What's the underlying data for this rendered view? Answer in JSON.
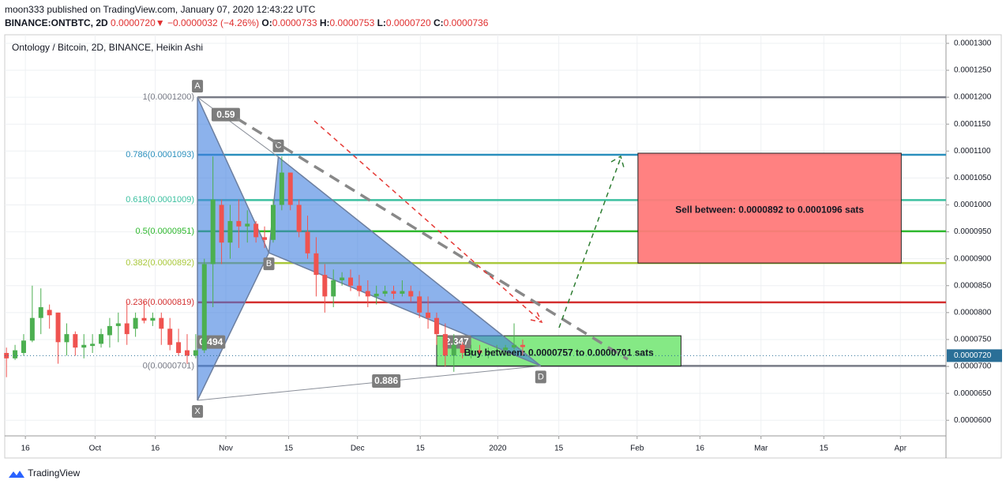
{
  "header": {
    "publisher": "moon333 published on TradingView.com, January 07, 2020 12:43:22 UTC",
    "symbol": "BINANCE:ONTBTC, 2D",
    "last": "0.0000720",
    "arrow": "▼",
    "change": "−0.0000032 (−4.26%)",
    "o_label": "O:",
    "o": "0.0000733",
    "h_label": "H:",
    "h": "0.0000753",
    "l_label": "L:",
    "l": "0.0000720",
    "c_label": "C:",
    "c": "0.0000736"
  },
  "footer": {
    "brand": "TradingView"
  },
  "chart_data": {
    "type": "candlestick",
    "title": "Ontology / Bitcoin, 2D, BINANCE, Heikin Ashi",
    "up_color": "#4caf50",
    "down_color": "#ef5350",
    "grid": true,
    "candles": [
      {
        "o": 7.25e-05,
        "h": 7.35e-05,
        "l": 6.8e-05,
        "c": 7.15e-05
      },
      {
        "o": 7.15e-05,
        "h": 7.4e-05,
        "l": 7.12e-05,
        "c": 7.3e-05
      },
      {
        "o": 7.25e-05,
        "h": 7.6e-05,
        "l": 7.2e-05,
        "c": 7.48e-05
      },
      {
        "o": 7.48e-05,
        "h": 8.5e-05,
        "l": 7.45e-05,
        "c": 7.9e-05
      },
      {
        "o": 7.9e-05,
        "h": 8.45e-05,
        "l": 7.6e-05,
        "c": 8.1e-05
      },
      {
        "o": 8.05e-05,
        "h": 8.15e-05,
        "l": 7.7e-05,
        "c": 7.95e-05
      },
      {
        "o": 8e-05,
        "h": 8e-05,
        "l": 7.05e-05,
        "c": 7.45e-05
      },
      {
        "o": 7.45e-05,
        "h": 7.8e-05,
        "l": 7.2e-05,
        "c": 7.6e-05
      },
      {
        "o": 7.6e-05,
        "h": 7.65e-05,
        "l": 7.2e-05,
        "c": 7.35e-05
      },
      {
        "o": 7.35e-05,
        "h": 7.6e-05,
        "l": 7.15e-05,
        "c": 7.4e-05
      },
      {
        "o": 7.38e-05,
        "h": 7.6e-05,
        "l": 7.25e-05,
        "c": 7.42e-05
      },
      {
        "o": 7.42e-05,
        "h": 7.7e-05,
        "l": 7.35e-05,
        "c": 7.6e-05
      },
      {
        "o": 7.58e-05,
        "h": 7.9e-05,
        "l": 7.35e-05,
        "c": 7.75e-05
      },
      {
        "o": 7.75e-05,
        "h": 8e-05,
        "l": 7.45e-05,
        "c": 7.8e-05
      },
      {
        "o": 7.8e-05,
        "h": 8.2e-05,
        "l": 7.4e-05,
        "c": 7.6e-05
      },
      {
        "o": 7.7e-05,
        "h": 8e-05,
        "l": 7.55e-05,
        "c": 7.9e-05
      },
      {
        "o": 7.9e-05,
        "h": 8.2e-05,
        "l": 7.8e-05,
        "c": 7.85e-05
      },
      {
        "o": 7.85e-05,
        "h": 8e-05,
        "l": 7.75e-05,
        "c": 7.9e-05
      },
      {
        "o": 7.9e-05,
        "h": 8e-05,
        "l": 7.4e-05,
        "c": 7.7e-05
      },
      {
        "o": 7.7e-05,
        "h": 7.9e-05,
        "l": 7.3e-05,
        "c": 7.4e-05
      },
      {
        "o": 7.45e-05,
        "h": 7.7e-05,
        "l": 7.2e-05,
        "c": 7.25e-05
      },
      {
        "o": 7.3e-05,
        "h": 7.6e-05,
        "l": 7.05e-05,
        "c": 7.2e-05
      },
      {
        "o": 7.2e-05,
        "h": 7.6e-05,
        "l": 7.15e-05,
        "c": 7.3e-05
      },
      {
        "o": 7.3e-05,
        "h": 9e-05,
        "l": 7.25e-05,
        "c": 8.9e-05
      },
      {
        "o": 8.9e-05,
        "h": 0.000109,
        "l": 8.1e-05,
        "c": 0.000101
      },
      {
        "o": 0.0001,
        "h": 0.000101,
        "l": 8.9e-05,
        "c": 9.3e-05
      },
      {
        "o": 9.3e-05,
        "h": 0.0001,
        "l": 9e-05,
        "c": 9.7e-05
      },
      {
        "o": 9.7e-05,
        "h": 0.000101,
        "l": 9.2e-05,
        "c": 9.6e-05
      },
      {
        "o": 9.6e-05,
        "h": 9.9e-05,
        "l": 9.3e-05,
        "c": 9.65e-05
      },
      {
        "o": 9.65e-05,
        "h": 9.7e-05,
        "l": 9.3e-05,
        "c": 9.4e-05
      },
      {
        "o": 9.4e-05,
        "h": 9.6e-05,
        "l": 9.2e-05,
        "c": 9.35e-05
      },
      {
        "o": 9.35e-05,
        "h": 0.000101,
        "l": 9.3e-05,
        "c": 0.0001
      },
      {
        "o": 0.0001,
        "h": 0.000109,
        "l": 9.9e-05,
        "c": 0.000106
      },
      {
        "o": 0.000106,
        "h": 0.000106,
        "l": 9.9e-05,
        "c": 0.0001
      },
      {
        "o": 0.0001,
        "h": 0.000101,
        "l": 9.4e-05,
        "c": 9.5e-05
      },
      {
        "o": 9.5e-05,
        "h": 9.8e-05,
        "l": 9e-05,
        "c": 9.1e-05
      },
      {
        "o": 9.1e-05,
        "h": 9.4e-05,
        "l": 8.3e-05,
        "c": 8.7e-05
      },
      {
        "o": 8.7e-05,
        "h": 8.9e-05,
        "l": 8e-05,
        "c": 8.3e-05
      },
      {
        "o": 8.3e-05,
        "h": 8.8e-05,
        "l": 8.1e-05,
        "c": 8.6e-05
      },
      {
        "o": 8.6e-05,
        "h": 8.75e-05,
        "l": 8.5e-05,
        "c": 8.65e-05
      },
      {
        "o": 8.65e-05,
        "h": 8.8e-05,
        "l": 8.4e-05,
        "c": 8.5e-05
      },
      {
        "o": 8.5e-05,
        "h": 8.7e-05,
        "l": 8.3e-05,
        "c": 8.4e-05
      },
      {
        "o": 8.4e-05,
        "h": 8.6e-05,
        "l": 8.1e-05,
        "c": 8.3e-05
      },
      {
        "o": 8.3e-05,
        "h": 8.5e-05,
        "l": 8.15e-05,
        "c": 8.35e-05
      },
      {
        "o": 8.35e-05,
        "h": 8.5e-05,
        "l": 8.3e-05,
        "c": 8.4e-05
      },
      {
        "o": 8.4e-05,
        "h": 8.5e-05,
        "l": 8.25e-05,
        "c": 8.35e-05
      },
      {
        "o": 8.35e-05,
        "h": 8.6e-05,
        "l": 8.3e-05,
        "c": 8.4e-05
      },
      {
        "o": 8.4e-05,
        "h": 8.5e-05,
        "l": 8.2e-05,
        "c": 8.3e-05
      },
      {
        "o": 8.3e-05,
        "h": 8.4e-05,
        "l": 7.9e-05,
        "c": 8e-05
      },
      {
        "o": 8e-05,
        "h": 8.3e-05,
        "l": 7.7e-05,
        "c": 7.9e-05
      },
      {
        "o": 7.9e-05,
        "h": 8e-05,
        "l": 7.4e-05,
        "c": 7.6e-05
      },
      {
        "o": 7.6e-05,
        "h": 7.8e-05,
        "l": 7e-05,
        "c": 7.2e-05
      },
      {
        "o": 7.2e-05,
        "h": 7.6e-05,
        "l": 6.9e-05,
        "c": 7.4e-05
      },
      {
        "o": 7.4e-05,
        "h": 7.45e-05,
        "l": 7.15e-05,
        "c": 7.25e-05
      },
      {
        "o": 7.25e-05,
        "h": 7.4e-05,
        "l": 7.15e-05,
        "c": 7.3e-05
      },
      {
        "o": 7.3e-05,
        "h": 7.4e-05,
        "l": 7.2e-05,
        "c": 7.25e-05
      },
      {
        "o": 7.25e-05,
        "h": 7.35e-05,
        "l": 7.15e-05,
        "c": 7.28e-05
      },
      {
        "o": 7.28e-05,
        "h": 7.4e-05,
        "l": 7.2e-05,
        "c": 7.3e-05
      },
      {
        "o": 7.3e-05,
        "h": 7.4e-05,
        "l": 7.2e-05,
        "c": 7.35e-05
      },
      {
        "o": 7.35e-05,
        "h": 7.8e-05,
        "l": 7.25e-05,
        "c": 7.4e-05
      },
      {
        "o": 7.4e-05,
        "h": 7.5e-05,
        "l": 7.2e-05,
        "c": 7.36e-05
      }
    ],
    "xlim": [
      -0.2,
      109.2
    ],
    "xticks": [
      {
        "value": 2.2,
        "label": "16"
      },
      {
        "value": 10.3,
        "label": "Oct"
      },
      {
        "value": 17.3,
        "label": "16"
      },
      {
        "value": 25.5,
        "label": "Nov"
      },
      {
        "value": 32.8,
        "label": "15"
      },
      {
        "value": 40.8,
        "label": "Dec"
      },
      {
        "value": 48.1,
        "label": "15"
      },
      {
        "value": 57.1,
        "label": "2020"
      },
      {
        "value": 64.2,
        "label": "15"
      },
      {
        "value": 73.3,
        "label": "Feb"
      },
      {
        "value": 80.6,
        "label": "16"
      },
      {
        "value": 87.7,
        "label": "Mar"
      },
      {
        "value": 95,
        "label": "15"
      },
      {
        "value": 103.9,
        "label": "Apr"
      }
    ],
    "ylim": [
      5.71e-05,
      0.0001316
    ],
    "yticks": [
      {
        "value": 0.00013,
        "label": "0.0001300"
      },
      {
        "value": 0.000125,
        "label": "0.0001250"
      },
      {
        "value": 0.00012,
        "label": "0.0001200"
      },
      {
        "value": 0.000115,
        "label": "0.0001150"
      },
      {
        "value": 0.00011,
        "label": "0.0001100"
      },
      {
        "value": 0.000105,
        "label": "0.0001050"
      },
      {
        "value": 0.0001,
        "label": "0.0001000"
      },
      {
        "value": 9.5e-05,
        "label": "0.0000950"
      },
      {
        "value": 9e-05,
        "label": "0.0000900"
      },
      {
        "value": 8.5e-05,
        "label": "0.0000850"
      },
      {
        "value": 8e-05,
        "label": "0.0000800"
      },
      {
        "value": 7.5e-05,
        "label": "0.0000750"
      },
      {
        "value": 7e-05,
        "label": "0.0000700"
      },
      {
        "value": 6.5e-05,
        "label": "0.0000650"
      },
      {
        "value": 6e-05,
        "label": "0.0000600"
      }
    ],
    "last_price": {
      "value": 7.2e-05,
      "label": "0.0000720"
    },
    "fib_levels": [
      {
        "value": 0.00012,
        "label": "1(0.0001200)",
        "color": "#787b86"
      },
      {
        "value": 0.0001093,
        "label": "0.786(0.0001093)",
        "color": "#2a8fbd"
      },
      {
        "value": 0.0001009,
        "label": "0.618(0.0001009)",
        "color": "#3cc0a0"
      },
      {
        "value": 9.51e-05,
        "label": "0.5(0.0000951)",
        "color": "#2eb82e"
      },
      {
        "value": 8.92e-05,
        "label": "0.382(0.0000892)",
        "color": "#a9c83a"
      },
      {
        "value": 8.19e-05,
        "label": "0.236(0.0000819)",
        "color": "#d32f2f"
      },
      {
        "value": 7.01e-05,
        "label": "0(0.0000701)",
        "color": "#787b86"
      }
    ],
    "pattern": {
      "points": [
        {
          "label": "X",
          "x": 22.2,
          "y": 6.37e-05
        },
        {
          "label": "A",
          "x": 22.2,
          "y": 0.00012
        },
        {
          "label": "B",
          "x": 30.5,
          "y": 9.11e-05
        },
        {
          "label": "C",
          "x": 31.6,
          "y": 0.0001089
        },
        {
          "label": "D",
          "x": 62.1,
          "y": 7.01e-05
        }
      ],
      "ratios": [
        "0.59",
        "0.494",
        "2.347",
        "0.886"
      ]
    },
    "boxes": [
      {
        "low": 8.92e-05,
        "high": 0.0001096,
        "x0": 73.4,
        "x1": 104,
        "label": "Sell between: 0.0000892 to 0.0001096 sats",
        "color": "#ff7a7a"
      },
      {
        "low": 7.01e-05,
        "high": 7.57e-05,
        "x0": 50,
        "x1": 78.4,
        "label": "Buy between: 0.0000757 to 0.0000701 sats",
        "color": "#7ee87e"
      }
    ]
  }
}
